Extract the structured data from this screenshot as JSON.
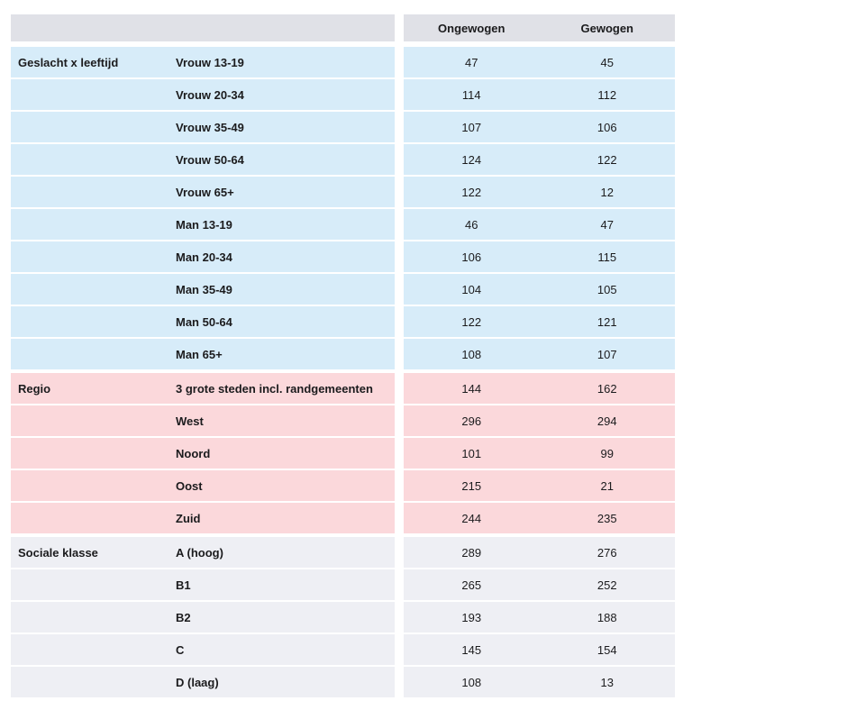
{
  "header": {
    "corner": "",
    "columns": [
      "Ongewogen",
      "Gewogen"
    ]
  },
  "colors": {
    "header_bg": "#e0e1e7",
    "section_geslacht_bg": "#d7ecf9",
    "section_regio_bg": "#fbd8db",
    "section_sociale_bg": "#eeeff4",
    "text": "#1b1b1d",
    "page_bg": "#ffffff"
  },
  "sections": [
    {
      "name": "Geslacht x leeftijd",
      "color": "#d7ecf9",
      "rows": [
        {
          "label": "Vrouw 13-19",
          "ongewogen": "47",
          "gewogen": "45"
        },
        {
          "label": "Vrouw 20-34",
          "ongewogen": "114",
          "gewogen": "112"
        },
        {
          "label": "Vrouw 35-49",
          "ongewogen": "107",
          "gewogen": "106"
        },
        {
          "label": "Vrouw 50-64",
          "ongewogen": "124",
          "gewogen": "122"
        },
        {
          "label": "Vrouw 65+",
          "ongewogen": "122",
          "gewogen": "12"
        },
        {
          "label": "Man 13-19",
          "ongewogen": "46",
          "gewogen": "47"
        },
        {
          "label": "Man 20-34",
          "ongewogen": "106",
          "gewogen": "115"
        },
        {
          "label": "Man 35-49",
          "ongewogen": "104",
          "gewogen": "105"
        },
        {
          "label": "Man 50-64",
          "ongewogen": "122",
          "gewogen": "121"
        },
        {
          "label": "Man 65+",
          "ongewogen": "108",
          "gewogen": "107"
        }
      ]
    },
    {
      "name": "Regio",
      "color": "#fbd8db",
      "rows": [
        {
          "label": "3 grote steden incl. randgemeenten",
          "ongewogen": "144",
          "gewogen": "162"
        },
        {
          "label": "West",
          "ongewogen": "296",
          "gewogen": "294"
        },
        {
          "label": "Noord",
          "ongewogen": "101",
          "gewogen": "99"
        },
        {
          "label": "Oost",
          "ongewogen": "215",
          "gewogen": "21"
        },
        {
          "label": "Zuid",
          "ongewogen": "244",
          "gewogen": "235"
        }
      ]
    },
    {
      "name": "Sociale klasse",
      "color": "#eeeff4",
      "rows": [
        {
          "label": "A (hoog)",
          "ongewogen": "289",
          "gewogen": "276"
        },
        {
          "label": "B1",
          "ongewogen": "265",
          "gewogen": "252"
        },
        {
          "label": "B2",
          "ongewogen": "193",
          "gewogen": "188"
        },
        {
          "label": "C",
          "ongewogen": "145",
          "gewogen": "154"
        },
        {
          "label": "D (laag)",
          "ongewogen": "108",
          "gewogen": "13"
        }
      ]
    }
  ]
}
